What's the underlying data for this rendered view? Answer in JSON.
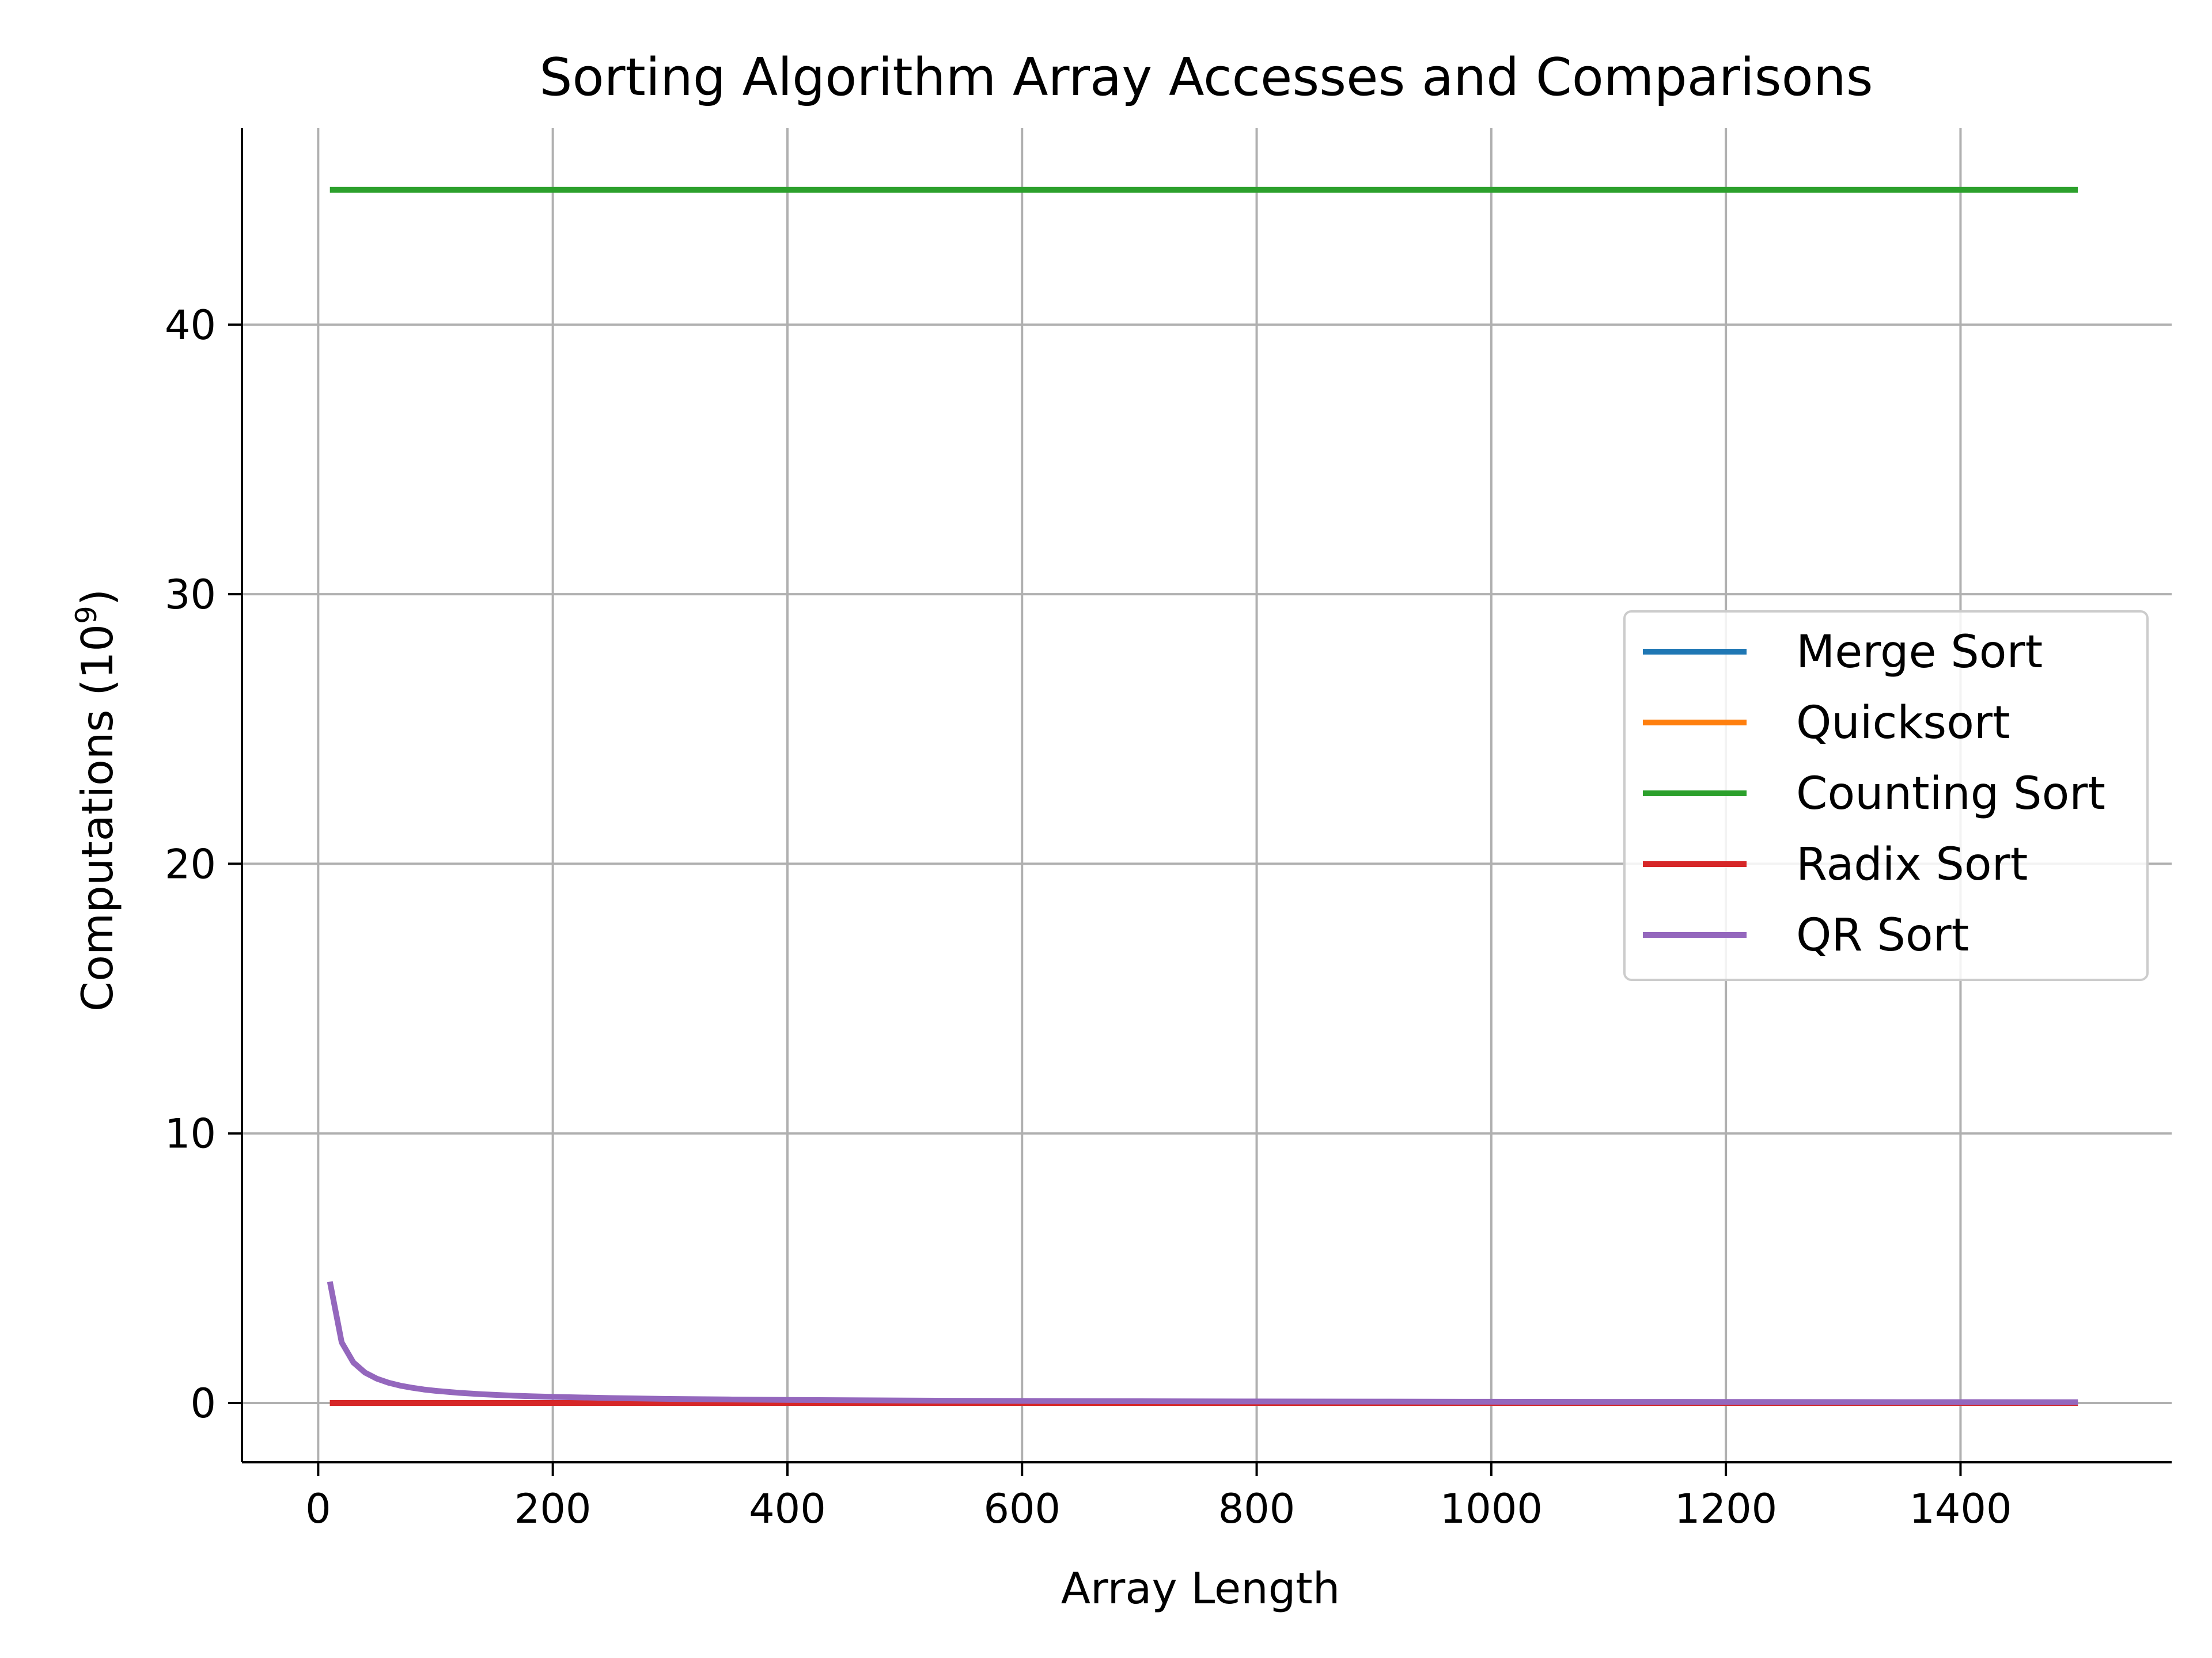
{
  "chart_data": {
    "type": "line",
    "title": "Sorting Algorithm Array Accesses and Comparisons",
    "xlabel": "Array Length",
    "ylabel": "Computations (10",
    "ylabel_exponent": "9",
    "ylabel_suffix": ")",
    "xlim": [
      -65,
      1580
    ],
    "ylim": [
      -2.2,
      47.3
    ],
    "xticks": [
      0,
      200,
      400,
      600,
      800,
      1000,
      1200,
      1400
    ],
    "yticks": [
      0,
      10,
      20,
      30,
      40
    ],
    "grid": true,
    "legend_position": "center-right",
    "series": [
      {
        "name": "Merge Sort",
        "color": "#1f77b4",
        "x": [
          10,
          1500
        ],
        "y": [
          0.0,
          0.0
        ]
      },
      {
        "name": "Quicksort",
        "color": "#ff7f0e",
        "x": [
          10,
          1500
        ],
        "y": [
          0.0,
          0.0
        ]
      },
      {
        "name": "Counting Sort",
        "color": "#2ca02c",
        "x": [
          10,
          1500
        ],
        "y": [
          45.0,
          45.0
        ]
      },
      {
        "name": "Radix Sort",
        "color": "#d62728",
        "x": [
          10,
          1500
        ],
        "y": [
          0.0,
          0.0
        ]
      },
      {
        "name": "QR Sort",
        "color": "#9467bd",
        "x": [
          10,
          20,
          30,
          40,
          50,
          60,
          70,
          80,
          90,
          100,
          120,
          140,
          160,
          180,
          200,
          250,
          300,
          350,
          400,
          500,
          600,
          700,
          800,
          900,
          1000,
          1100,
          1200,
          1300,
          1400,
          1500
        ],
        "y": [
          4.5,
          2.25,
          1.5,
          1.125,
          0.9,
          0.75,
          0.643,
          0.5625,
          0.5,
          0.45,
          0.375,
          0.321,
          0.281,
          0.25,
          0.225,
          0.18,
          0.15,
          0.129,
          0.1125,
          0.09,
          0.075,
          0.064,
          0.056,
          0.05,
          0.045,
          0.041,
          0.0375,
          0.0346,
          0.032,
          0.03
        ]
      }
    ]
  }
}
